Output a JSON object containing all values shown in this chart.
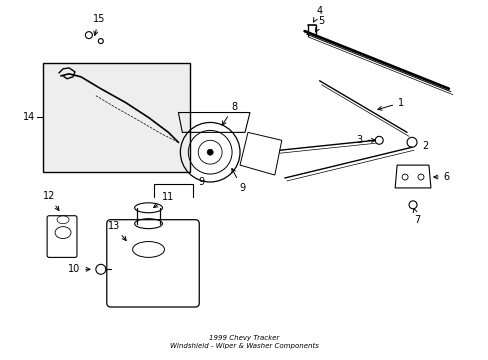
{
  "title": "1999 Chevy Tracker\nWindshield - Wiper & Washer Components",
  "bg_color": "#ffffff",
  "line_color": "#000000",
  "label_color": "#000000",
  "fig_width": 4.89,
  "fig_height": 3.6,
  "dpi": 100
}
